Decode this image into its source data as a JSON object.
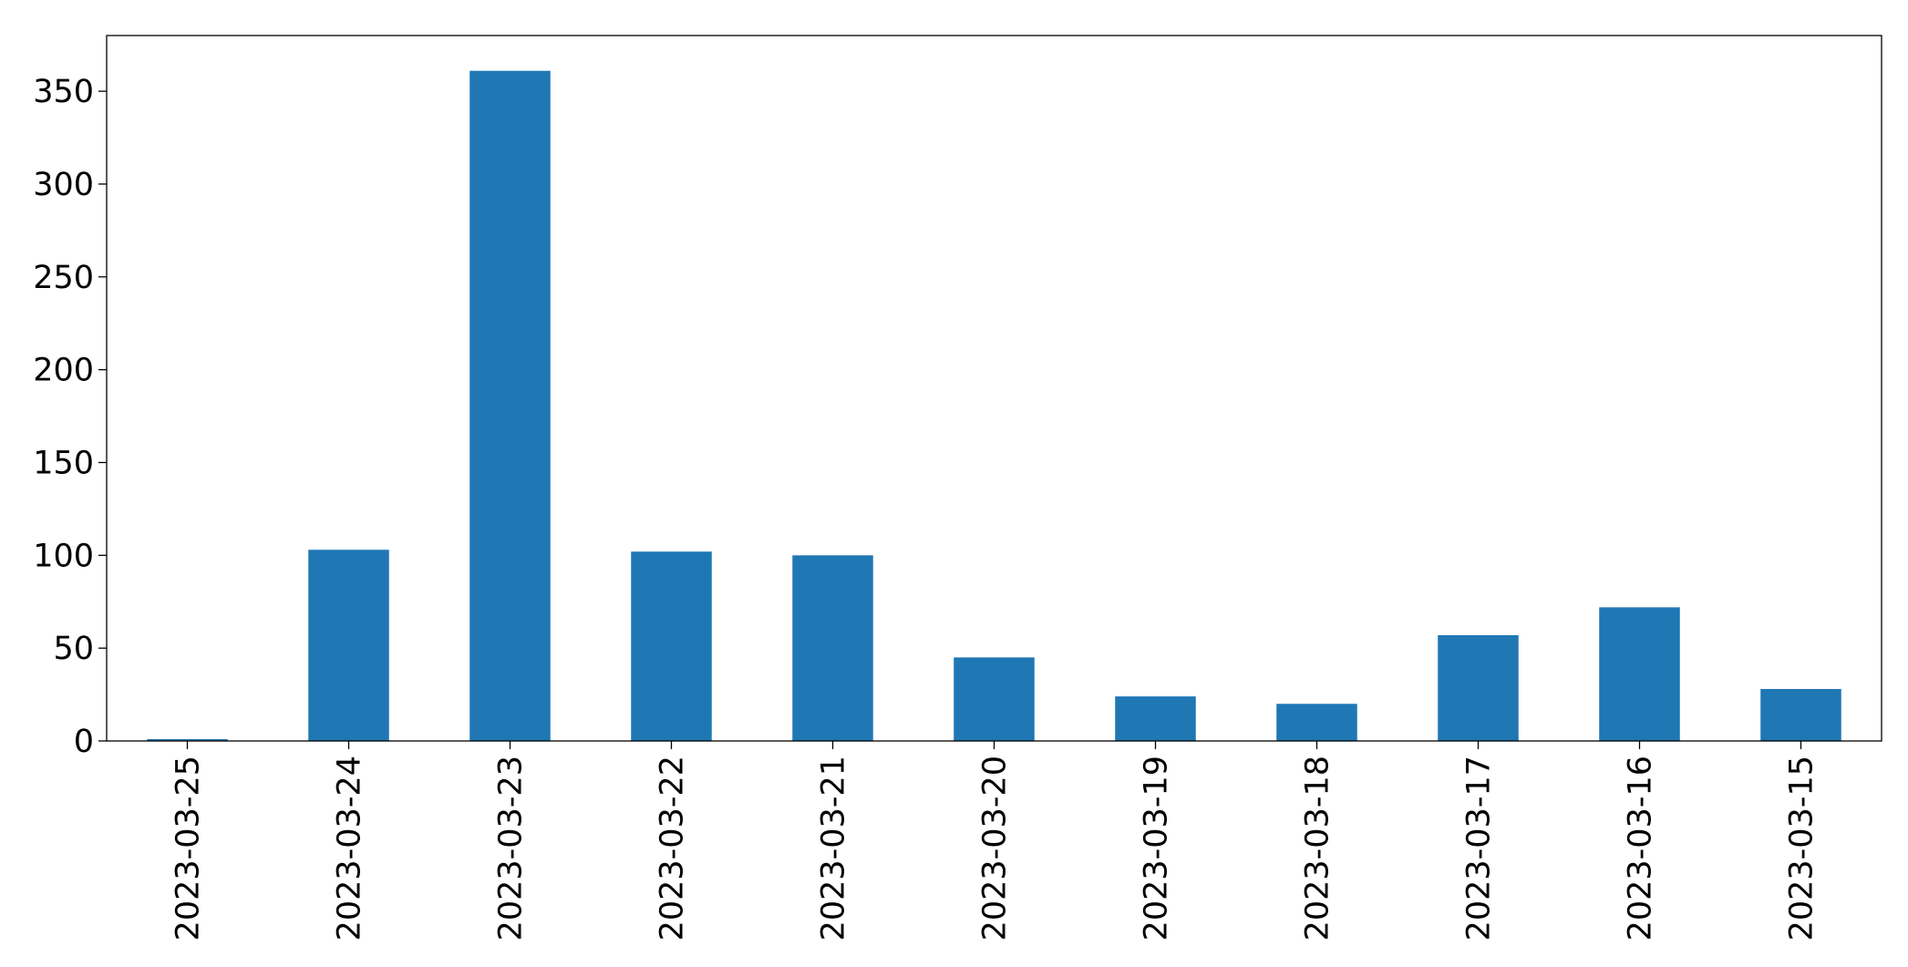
{
  "chart_data": {
    "type": "bar",
    "categories": [
      "2023-03-25",
      "2023-03-24",
      "2023-03-23",
      "2023-03-22",
      "2023-03-21",
      "2023-03-20",
      "2023-03-19",
      "2023-03-18",
      "2023-03-17",
      "2023-03-16",
      "2023-03-15"
    ],
    "values": [
      1,
      103,
      361,
      102,
      100,
      45,
      24,
      20,
      57,
      72,
      28
    ],
    "color": "#1f77b4",
    "ylim": [
      0,
      380
    ],
    "yticks": [
      0,
      50,
      100,
      150,
      200,
      250,
      300,
      350
    ],
    "grid": false
  }
}
